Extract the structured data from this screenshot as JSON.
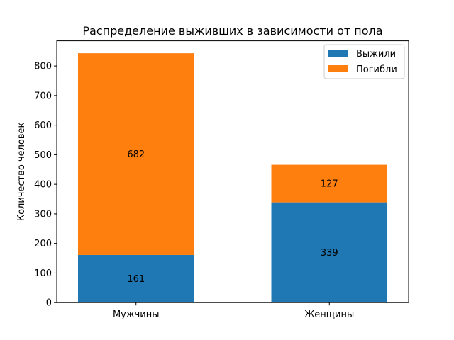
{
  "chart_data": {
    "type": "bar",
    "stacked": true,
    "title": "Распределение выживших в зависимости от пола",
    "xlabel": "",
    "ylabel": "Количество человек",
    "categories": [
      "Мужчины",
      "Женщины"
    ],
    "series": [
      {
        "name": "Выжили",
        "values": [
          161,
          339
        ],
        "color": "#1f77b4"
      },
      {
        "name": "Погибли",
        "values": [
          682,
          127
        ],
        "color": "#ff7f0e"
      }
    ],
    "ylim": [
      0,
      885
    ],
    "yticks": [
      0,
      100,
      200,
      300,
      400,
      500,
      600,
      700,
      800
    ],
    "grid": false,
    "legend_position": "top-right"
  }
}
